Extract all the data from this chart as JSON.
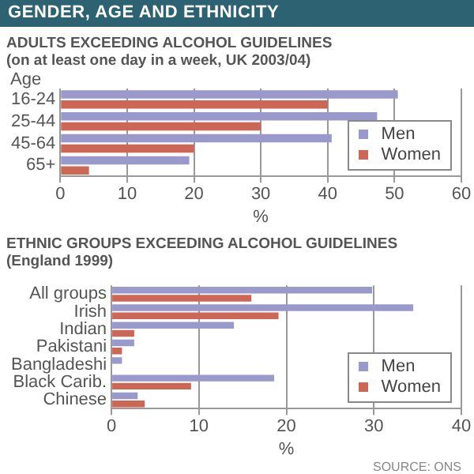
{
  "chart_data": [
    {
      "type": "bar",
      "orientation": "horizontal",
      "title": "ADULTS EXCEEDING ALCOHOL GUIDELINES",
      "subtitle": "(on at least one day in a week, UK 2003/04)",
      "annotations": [
        "GENDER, AGE AND ETHNICITY"
      ],
      "ylabel": "Age",
      "xlabel": "%",
      "categories": [
        "16-24",
        "25-44",
        "45-64",
        "65+"
      ],
      "series": [
        {
          "name": "Men",
          "color": "#9999cc",
          "values": [
            50.5,
            47.4,
            40.6,
            19.3
          ]
        },
        {
          "name": "Women",
          "color": "#cc6655",
          "values": [
            40,
            30,
            20,
            4.3
          ]
        }
      ],
      "xlim": [
        0,
        60
      ],
      "xticks": [
        0,
        10,
        20,
        30,
        40,
        50,
        60
      ],
      "grid": "x",
      "legend": "bottom right"
    },
    {
      "type": "bar",
      "orientation": "horizontal",
      "title": "ETHNIC GROUPS EXCEEDING ALCOHOL GUIDELINES",
      "subtitle": "(England 1999)",
      "annotations": [
        "SOURCE: ONS"
      ],
      "xlabel": "%",
      "categories": [
        "All groups",
        "Irish",
        "Indian",
        "Pakistani",
        "Bangladeshi",
        "Black Carib.",
        "Chinese"
      ],
      "series": [
        {
          "name": "Men",
          "color": "#9999cc",
          "values": [
            29.8,
            34.5,
            14,
            2.6,
            1.2,
            18.6,
            3
          ]
        },
        {
          "name": "Women",
          "color": "#cc6655",
          "values": [
            16,
            19.1,
            2.6,
            1.2,
            null,
            9.1,
            3.8
          ]
        }
      ],
      "xlim": [
        0,
        40
      ],
      "xticks": [
        0,
        10,
        20,
        30,
        40
      ],
      "grid": "x",
      "legend": "bottom right"
    }
  ]
}
